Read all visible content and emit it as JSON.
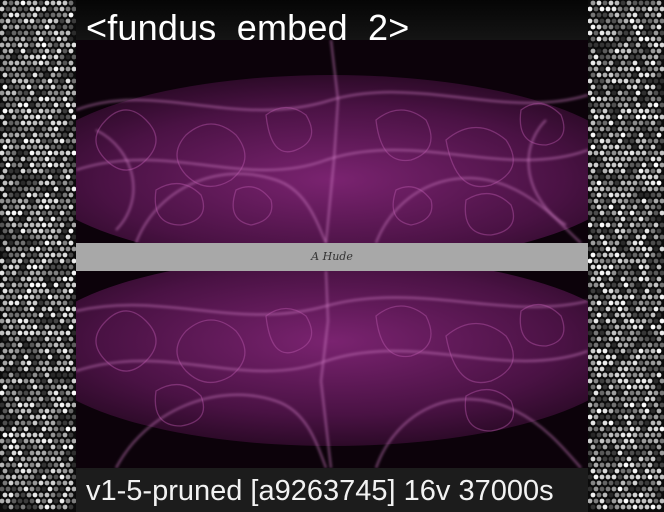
{
  "header": {
    "title": "<fundus_embed_2>"
  },
  "divider": {
    "label": "A Hude"
  },
  "footer": {
    "caption": "v1-5-pruned [a9263745]  16v 37000s"
  },
  "colors": {
    "background_texture": "#0b0b0b",
    "art_magenta": "#a0309a",
    "art_dark": "#1a0616",
    "divider_gray": "#a8a8a8",
    "footer_bg": "#1c1c1c",
    "text": "#ffffff"
  }
}
